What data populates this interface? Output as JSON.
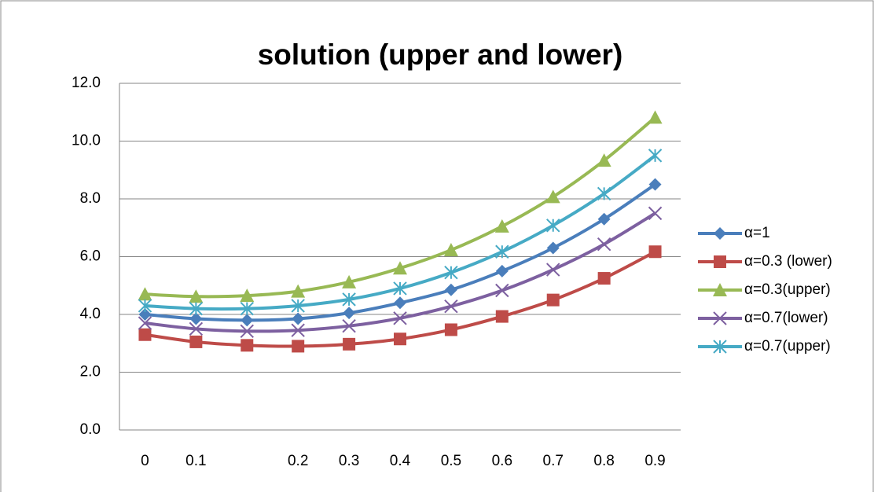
{
  "chart_data": {
    "type": "line",
    "title": "solution  (upper and lower)",
    "categories": [
      "0",
      "0.1",
      null,
      "0.2",
      "0.3",
      "0.4",
      "0.5",
      "0.6",
      "0.7",
      "0.8",
      "0.9"
    ],
    "series": [
      {
        "name": "α=1",
        "color": "#4a7ebb",
        "marker": "diamond",
        "values": [
          4.0,
          3.85,
          3.8,
          3.85,
          4.05,
          4.4,
          4.85,
          5.5,
          6.3,
          7.3,
          8.5
        ]
      },
      {
        "name": "α=0.3 (lower)",
        "color": "#be4b48",
        "marker": "square",
        "values": [
          3.3,
          3.05,
          2.93,
          2.9,
          2.97,
          3.15,
          3.47,
          3.93,
          4.5,
          5.25,
          6.17
        ]
      },
      {
        "name": "α=0.3(upper)",
        "color": "#98b954",
        "marker": "triangle",
        "values": [
          4.7,
          4.62,
          4.65,
          4.8,
          5.12,
          5.6,
          6.23,
          7.05,
          8.07,
          9.33,
          10.82
        ]
      },
      {
        "name": "α=0.7(lower)",
        "color": "#7d60a0",
        "marker": "x",
        "values": [
          3.7,
          3.5,
          3.42,
          3.45,
          3.6,
          3.87,
          4.28,
          4.83,
          5.55,
          6.43,
          7.5
        ]
      },
      {
        "name": "α=0.7(upper)",
        "color": "#46aac5",
        "marker": "star",
        "values": [
          4.3,
          4.2,
          4.2,
          4.3,
          4.52,
          4.9,
          5.45,
          6.17,
          7.08,
          8.18,
          9.5
        ]
      }
    ],
    "ylim": [
      0,
      12
    ],
    "yticks": [
      {
        "value": 0,
        "label": "0.0"
      },
      {
        "value": 2,
        "label": "2.0"
      },
      {
        "value": 4,
        "label": "4.0"
      },
      {
        "value": 6,
        "label": "6.0"
      },
      {
        "value": 8,
        "label": "8.0"
      },
      {
        "value": 10,
        "label": "10.0"
      },
      {
        "value": 12,
        "label": "12.0"
      }
    ],
    "grid": true,
    "legend": "right"
  }
}
